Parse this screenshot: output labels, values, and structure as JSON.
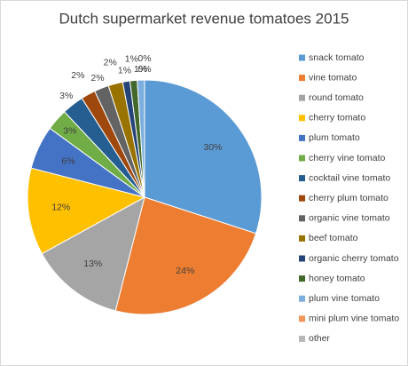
{
  "chart_data": {
    "type": "pie",
    "title": "Dutch supermarket revenue tomatoes 2015",
    "categories": [
      "snack tomato",
      "vine tomato",
      "round tomato",
      "cherry tomato",
      "plum tomato",
      "cherry vine tomato",
      "cocktail vine tomato",
      "cherry plum tomato",
      "organic vine tomato",
      "beef tomato",
      "organic cherry tomato",
      "honey tomato",
      "plum vine tomato",
      "mini plum vine tomato",
      "other"
    ],
    "values": [
      30,
      24,
      13,
      12,
      6,
      3,
      3,
      2,
      2,
      2,
      1,
      1,
      1,
      0,
      0
    ],
    "value_labels": [
      "30%",
      "24%",
      "13%",
      "12%",
      "6%",
      "3%",
      "3%",
      "2%",
      "2%",
      "2%",
      "1%",
      "1%",
      "1%",
      "0%",
      "0%"
    ],
    "colors": [
      "#5b9bd5",
      "#ed7d31",
      "#a5a5a5",
      "#ffc000",
      "#4472c4",
      "#70ad47",
      "#255e91",
      "#9e480e",
      "#636363",
      "#997300",
      "#264478",
      "#43682b",
      "#7cafdd",
      "#f1975a",
      "#b7b7b7"
    ],
    "legend": "right"
  }
}
